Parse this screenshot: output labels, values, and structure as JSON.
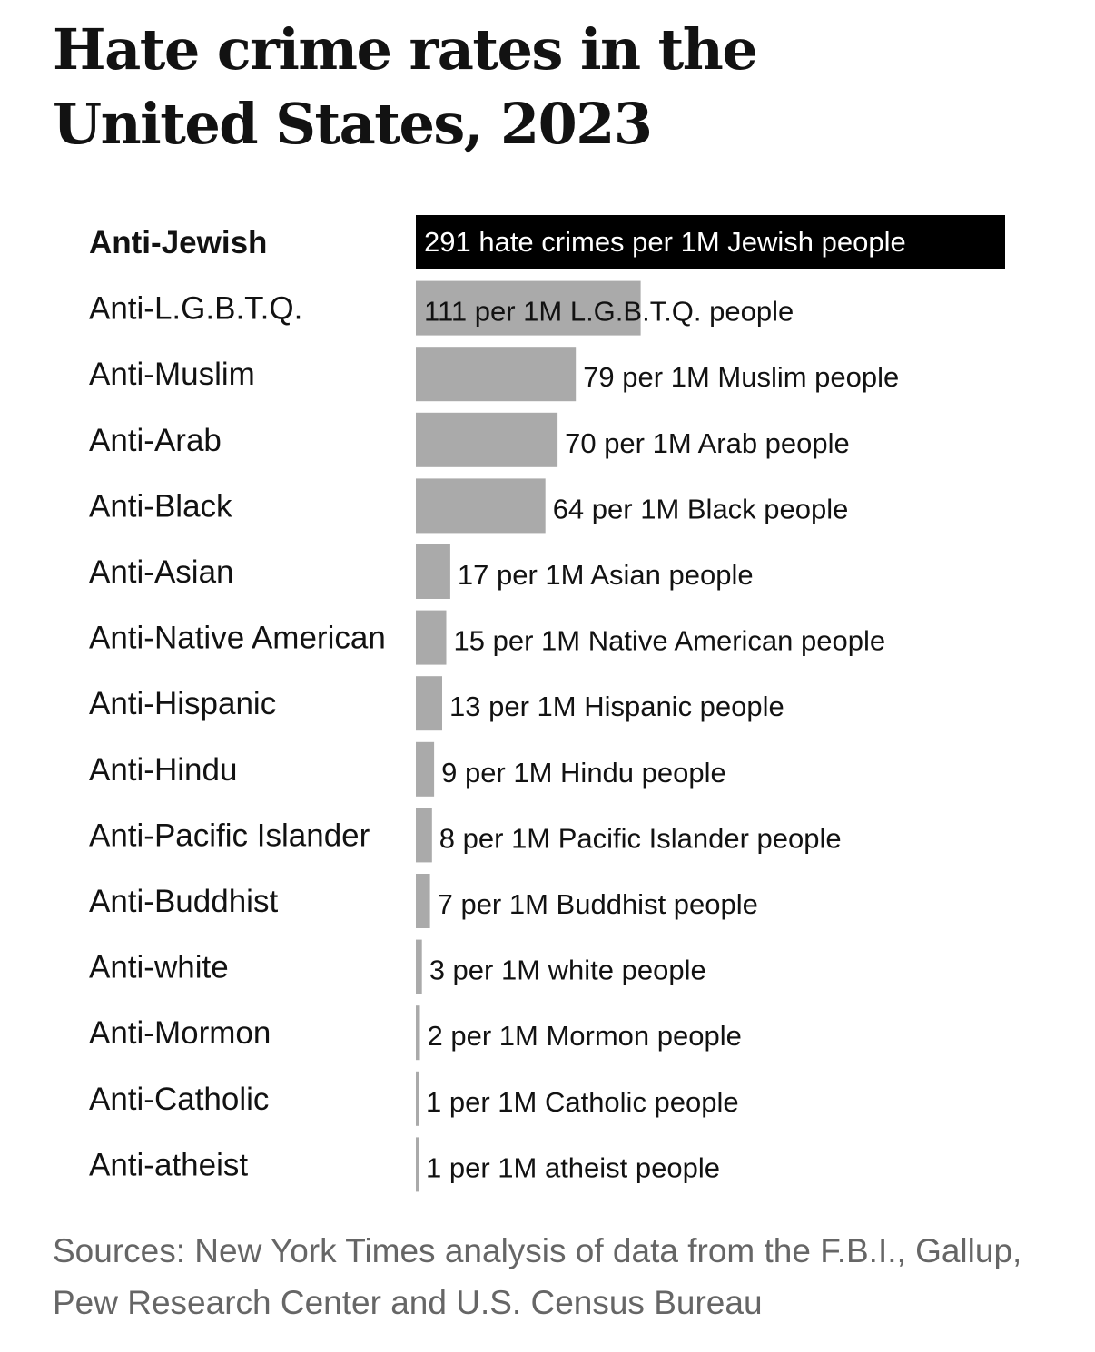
{
  "chart_data": {
    "type": "bar",
    "orientation": "horizontal",
    "title": "Hate crime rates in the United States, 2023",
    "xlabel": "",
    "ylabel": "",
    "xlim": [
      0,
      291
    ],
    "grid": false,
    "legend": "none",
    "categories": [
      "Anti-Jewish",
      "Anti-L.G.B.T.Q.",
      "Anti-Muslim",
      "Anti-Arab",
      "Anti-Black",
      "Anti-Asian",
      "Anti-Native American",
      "Anti-Hispanic",
      "Anti-Hindu",
      "Anti-Pacific Islander",
      "Anti-Buddhist",
      "Anti-white",
      "Anti-Mormon",
      "Anti-Catholic",
      "Anti-atheist"
    ],
    "values": [
      291,
      111,
      79,
      70,
      64,
      17,
      15,
      13,
      9,
      8,
      7,
      3,
      2,
      1,
      1
    ],
    "data_labels": [
      "291 hate crimes per 1M Jewish people",
      "111 per 1M L.G.B.T.Q. people",
      "79 per 1M Muslim people",
      "70 per 1M Arab people",
      "64 per 1M Black people",
      "17 per 1M Asian people",
      "15 per 1M Native American people",
      "13 per 1M Hispanic people",
      "9 per 1M Hindu people",
      "8 per 1M Pacific Islander people",
      "7 per 1M Buddhist people",
      "3 per 1M white people",
      "2 per 1M Mormon people",
      "1 per 1M Catholic people",
      "1 per 1M atheist people"
    ],
    "highlight_index": 0,
    "colors": {
      "highlight_bar": "#000000",
      "bar": "#aaaaaa",
      "highlight_label_text": "#ffffff",
      "label_text": "#121212"
    },
    "source": "Sources: New York Times analysis of data from the F.B.I., Gallup, Pew Research Center and U.S. Census Bureau"
  }
}
